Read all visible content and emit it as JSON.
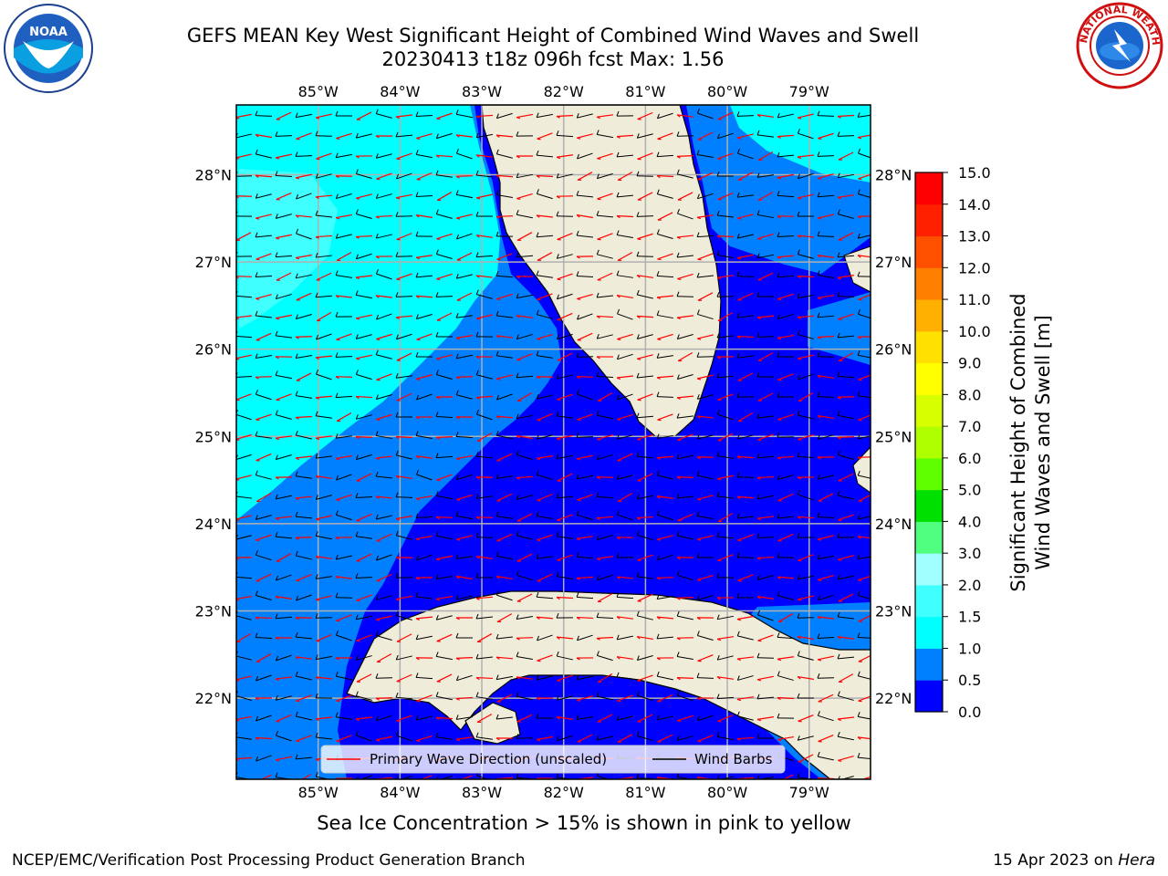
{
  "title": {
    "line1": "GEFS MEAN Key West Significant Height of Combined Wind Waves and Swell",
    "line2": "20230413 t18z 096h fcst   Max: 1.56"
  },
  "logos": {
    "left": {
      "icon": "noaa-logo",
      "text": "NOAA"
    },
    "right": {
      "icon": "nws-logo",
      "text": "NATIONAL WEATHER SERVICE"
    }
  },
  "map": {
    "lon_labels": [
      "85°W",
      "84°W",
      "83°W",
      "82°W",
      "81°W",
      "80°W",
      "79°W"
    ],
    "lat_labels": [
      "22°N",
      "23°N",
      "24°N",
      "25°N",
      "26°N",
      "27°N",
      "28°N"
    ],
    "lon_range": [
      -86,
      -78.25
    ],
    "lat_range": [
      21.07,
      28.8
    ],
    "land_color": "#efedda",
    "coast_color": "#000000",
    "grid_color": "#b0b0b0",
    "wave_arrow_color": "#ff0000",
    "wind_barb_color": "#000000"
  },
  "colorbar": {
    "label_line1": "Significant Height of Combined",
    "label_line2": "Wind Waves and Swell [m]",
    "ticks": [
      "0.0",
      "0.5",
      "1.0",
      "1.5",
      "2.0",
      "3.0",
      "4.0",
      "5.0",
      "6.0",
      "7.0",
      "8.0",
      "9.0",
      "10.0",
      "11.0",
      "12.0",
      "13.0",
      "14.0",
      "15.0"
    ],
    "colors": [
      "#0000ff",
      "#0080ff",
      "#00ffff",
      "#40ffff",
      "#a0ffff",
      "#50ff80",
      "#00e000",
      "#60ff00",
      "#b0ff00",
      "#d8ff00",
      "#ffff00",
      "#ffe000",
      "#ffb000",
      "#ff8000",
      "#ff5000",
      "#ff2000",
      "#ff0000"
    ]
  },
  "legend": {
    "primary_wave": "Primary Wave Direction (unscaled)",
    "wind_barbs": "Wind Barbs"
  },
  "caption": "Sea Ice Concentration > 15% is shown in pink to yellow",
  "footer": {
    "left": "NCEP/EMC/Verification Post Processing Product Generation Branch",
    "right_date": "15 Apr 2023 on",
    "right_host": "Hera"
  }
}
